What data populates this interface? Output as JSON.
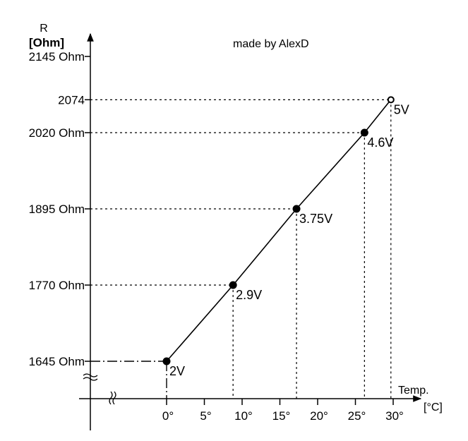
{
  "chart_data": {
    "type": "line",
    "annotation": "made by AlexD",
    "y_axis_title": [
      "R",
      "[Ohm]"
    ],
    "x_axis_title": [
      "Temp.",
      "[°C]"
    ],
    "x_range": [
      0,
      30
    ],
    "y_range": [
      1645,
      2145
    ],
    "y_ticks": [
      {
        "value": 2145,
        "label": "2145 Ohm"
      },
      {
        "value": 2074,
        "label": "2074"
      },
      {
        "value": 2020,
        "label": "2020 Ohm"
      },
      {
        "value": 1895,
        "label": "1895 Ohm"
      },
      {
        "value": 1770,
        "label": "1770 Ohm"
      },
      {
        "value": 1645,
        "label": "1645 Ohm"
      }
    ],
    "x_ticks": [
      {
        "value": 0,
        "label": "0°"
      },
      {
        "value": 5,
        "label": "5°"
      },
      {
        "value": 10,
        "label": "10°"
      },
      {
        "value": 15,
        "label": "15°"
      },
      {
        "value": 20,
        "label": "20°"
      },
      {
        "value": 25,
        "label": "25°"
      },
      {
        "value": 30,
        "label": "30°"
      }
    ],
    "points": [
      {
        "x": 0,
        "y": 1645,
        "label": "2V"
      },
      {
        "x": 8.8,
        "y": 1770,
        "label": "2.9V"
      },
      {
        "x": 17.2,
        "y": 1895,
        "label": "3.75V"
      },
      {
        "x": 26.2,
        "y": 2020,
        "label": "4.6V"
      },
      {
        "x": 29.7,
        "y": 2074,
        "label": "5V"
      }
    ],
    "grid": false,
    "axis_break": true
  }
}
